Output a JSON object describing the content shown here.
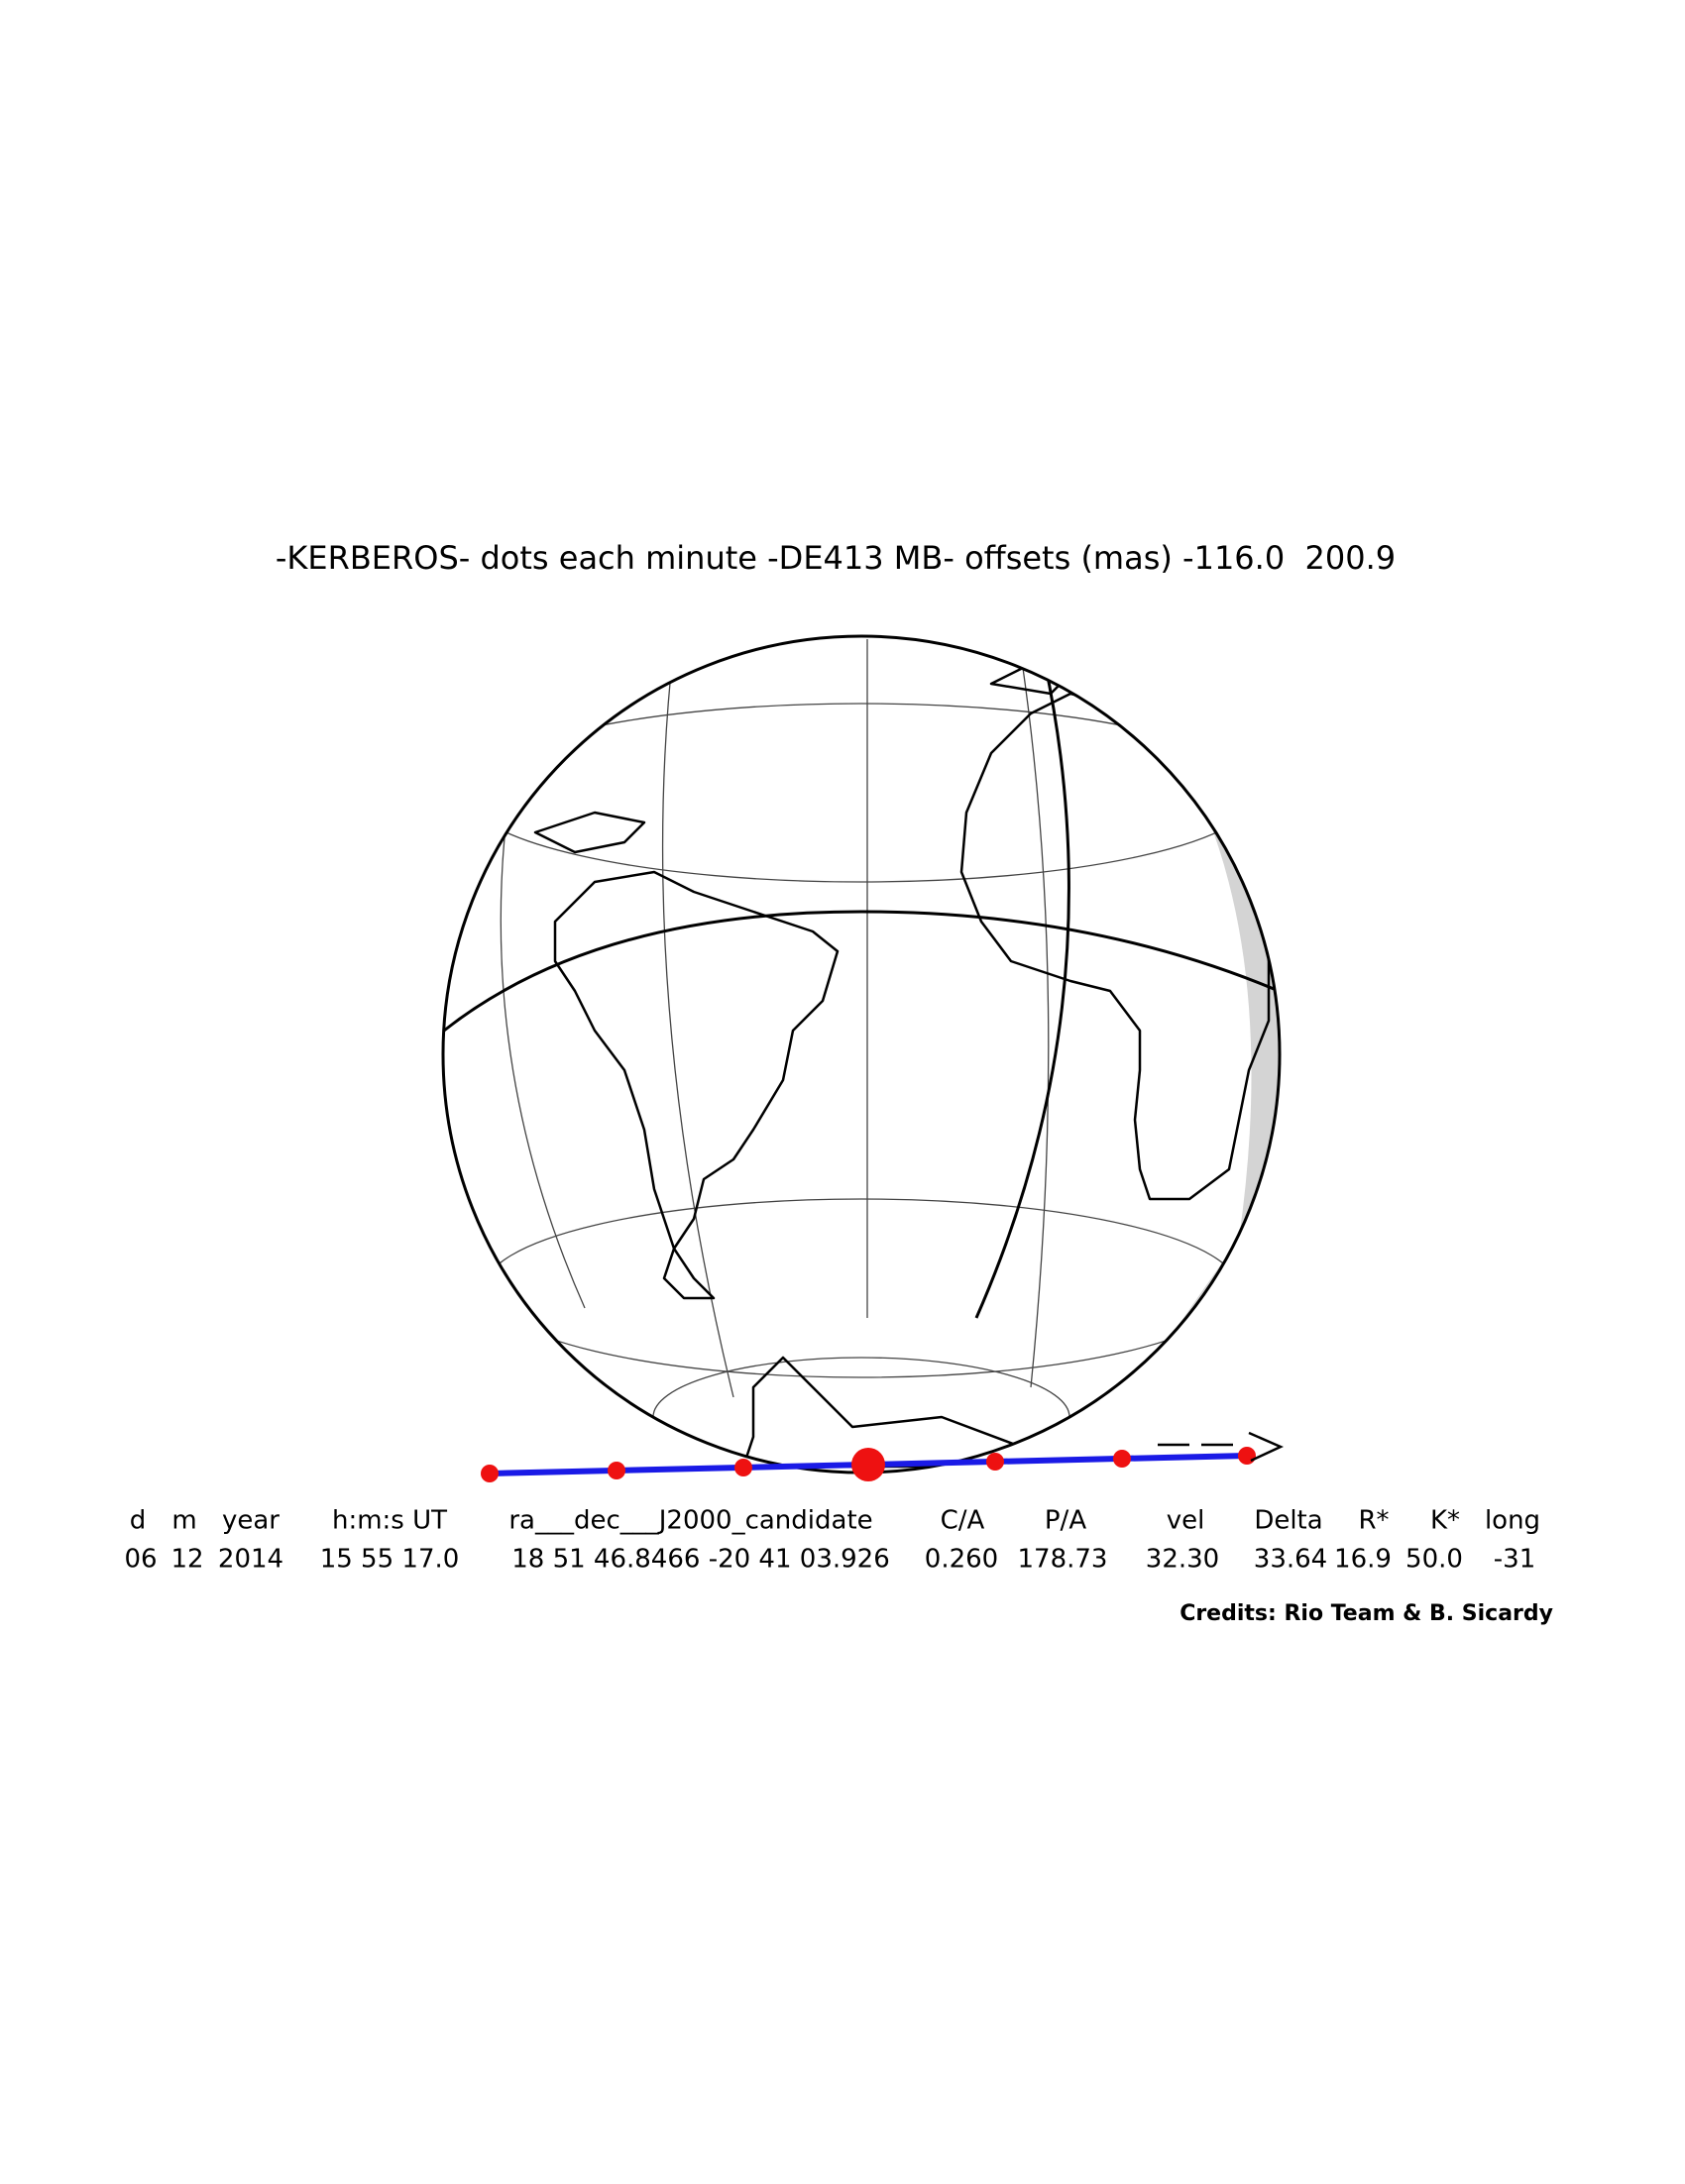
{
  "title": "-KERBEROS- dots each minute -DE413 MB- offsets (mas) -116.0  200.9",
  "table": {
    "header": [
      "d",
      "m",
      "year",
      "h:m:s UT",
      "ra___dec___J2000_candidate",
      "C/A",
      "P/A",
      "vel",
      "Delta",
      "R*",
      "K*",
      "long"
    ],
    "row": [
      "06",
      "12",
      "2014",
      "15 55 17.0",
      "18 51 46.8466 -20 41 03.926",
      "0.260",
      "178.73",
      "32.30",
      "33.64",
      "16.9",
      "50.0",
      "-31"
    ]
  },
  "credits": "Credits: Rio Team & B. Sicardy"
}
